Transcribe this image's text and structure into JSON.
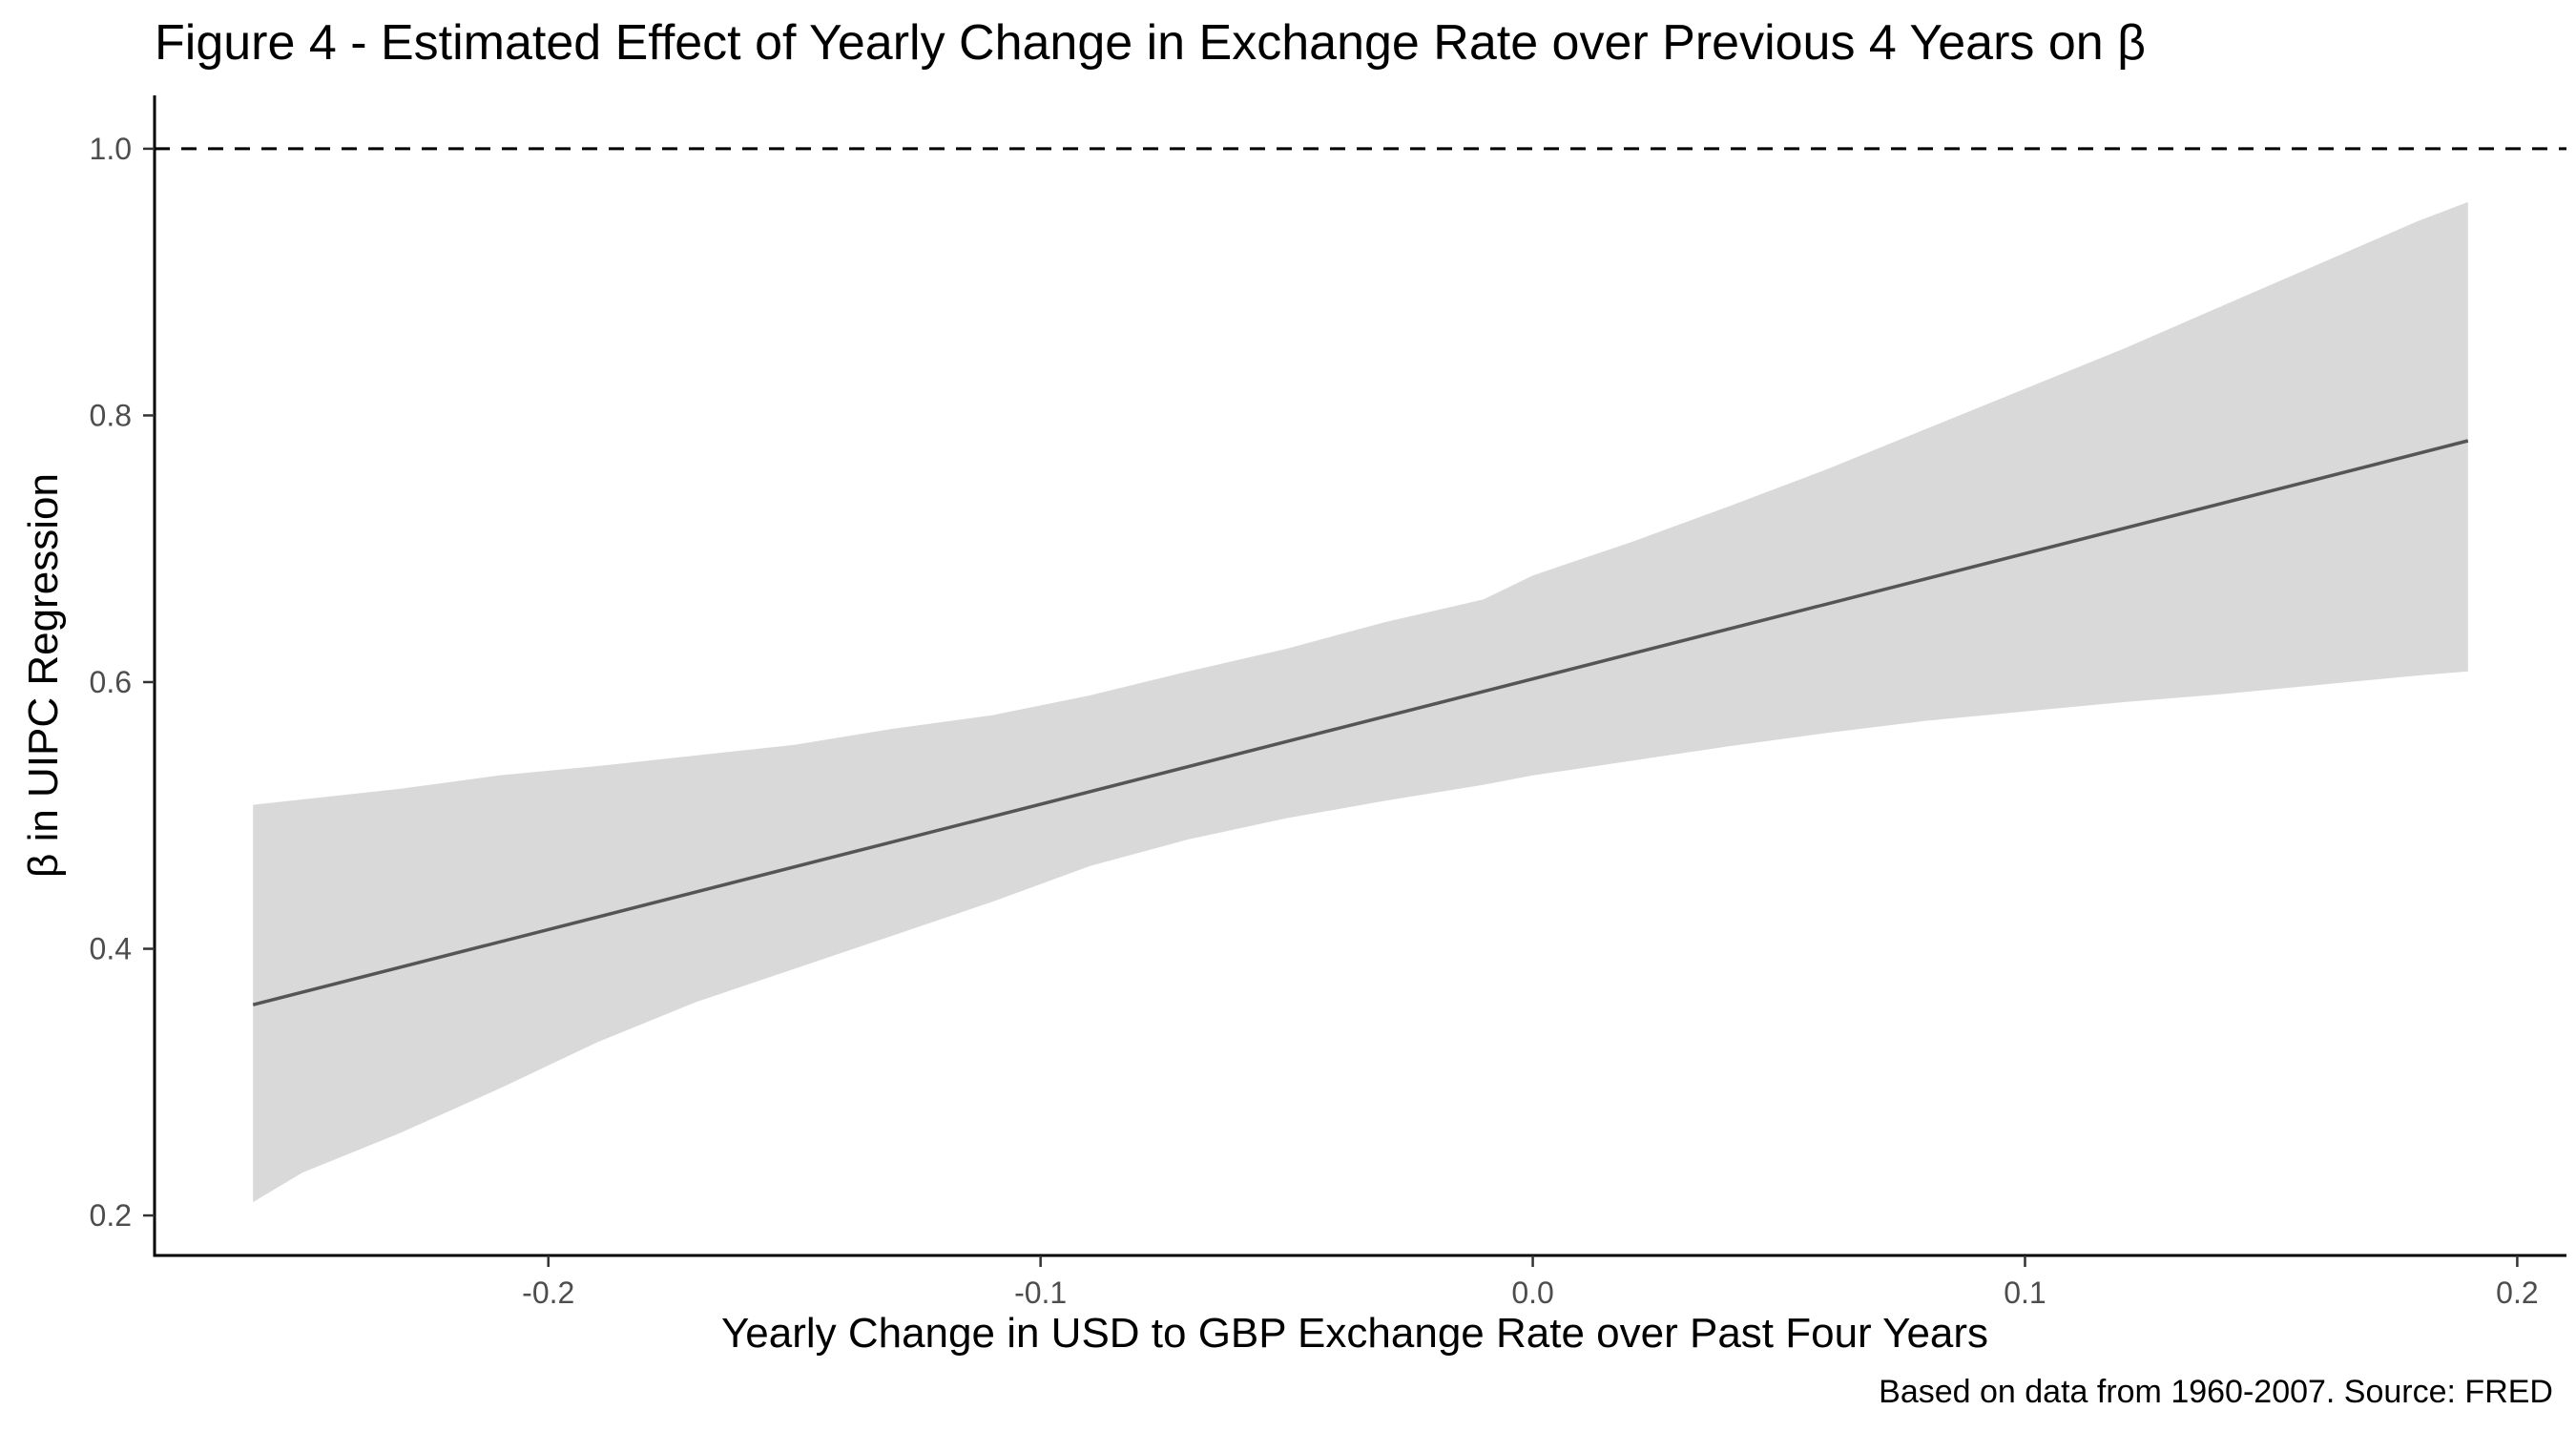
{
  "chart_data": {
    "type": "line",
    "title": "Figure 4 - Estimated Effect of Yearly Change in Exchange Rate over Previous 4 Years on β",
    "xlabel": "Yearly Change in USD to GBP Exchange Rate over Past Four Years",
    "ylabel": "β in UIPC Regression",
    "caption": "Based on data from 1960-2007. Source: FRED",
    "xlim": [
      -0.28,
      0.21
    ],
    "ylim": [
      0.17,
      1.04
    ],
    "x_ticks": [
      -0.2,
      -0.1,
      0.0,
      0.1,
      0.2
    ],
    "x_tick_labels": [
      "-0.2",
      "-0.1",
      "0.0",
      "0.1",
      "0.2"
    ],
    "y_ticks": [
      0.2,
      0.4,
      0.6,
      0.8,
      1.0
    ],
    "y_tick_labels": [
      "0.2",
      "0.4",
      "0.6",
      "0.8",
      "1.0"
    ],
    "grid": false,
    "reference_line": {
      "y": 1.0,
      "style": "dashed"
    },
    "series": [
      {
        "type": "line",
        "x": [
          -0.26,
          0.19
        ],
        "y": [
          0.358,
          0.781
        ]
      }
    ],
    "band": {
      "x": [
        -0.26,
        -0.25,
        -0.23,
        -0.21,
        -0.19,
        -0.17,
        -0.15,
        -0.13,
        -0.11,
        -0.09,
        -0.07,
        -0.05,
        -0.03,
        -0.01,
        0.0,
        0.02,
        0.04,
        0.06,
        0.08,
        0.1,
        0.12,
        0.14,
        0.16,
        0.18,
        0.19
      ],
      "lower": [
        0.21,
        0.232,
        0.262,
        0.295,
        0.33,
        0.36,
        0.385,
        0.41,
        0.435,
        0.462,
        0.482,
        0.498,
        0.511,
        0.523,
        0.53,
        0.541,
        0.552,
        0.562,
        0.571,
        0.578,
        0.585,
        0.591,
        0.598,
        0.605,
        0.608
      ],
      "upper": [
        0.508,
        0.512,
        0.52,
        0.53,
        0.537,
        0.545,
        0.553,
        0.565,
        0.575,
        0.59,
        0.608,
        0.625,
        0.645,
        0.662,
        0.68,
        0.705,
        0.732,
        0.76,
        0.79,
        0.82,
        0.85,
        0.882,
        0.914,
        0.946,
        0.96
      ]
    },
    "colors": {
      "line": "#555555",
      "band": "#d9d9d9",
      "axis": "#000000",
      "tick_label": "#4d4d4d"
    }
  }
}
